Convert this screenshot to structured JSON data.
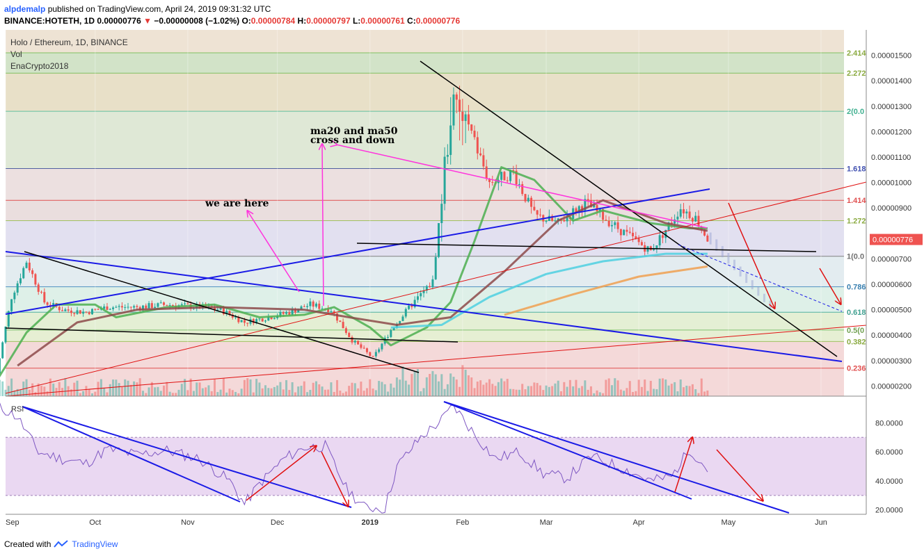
{
  "header": {
    "author": "alpdemalp",
    "published": "published on TradingView.com, April 24, 2019 09:31:32 UTC",
    "symbol": "BINANCE:HOTETH, 1D",
    "last": "0.00000776",
    "change": "−0.00000008 (−1.02%)",
    "o_label": "O:",
    "o": "0.00000784",
    "h_label": "H:",
    "h": "0.00000797",
    "l_label": "L:",
    "l": "0.00000761",
    "c_label": "C:",
    "c": "0.00000776"
  },
  "legend": {
    "title": "Holo / Ethereum, 1D, BINANCE",
    "vol": "Vol",
    "indicator": "EnaCrypto2018"
  },
  "footer": {
    "created": "Created with",
    "brand": "TradingView"
  },
  "colors": {
    "bull": "#26a69a",
    "bear": "#ef5350",
    "ma20": "#4caf50",
    "ma50": "#8d4a4a",
    "ma100": "#4dd0e1",
    "ma200": "#f0a050",
    "trend_blue": "#1a1ae6",
    "trend_black": "#000000",
    "annot_magenta": "#ff33dd",
    "annot_red": "#e01010",
    "rsi": "#7e57c2"
  },
  "chart_data": [
    {
      "type": "candlestick",
      "title": "Holo / Ethereum, 1D, BINANCE",
      "x_ticks": [
        "Sep",
        "Oct",
        "Nov",
        "Dec",
        "2019",
        "Feb",
        "Mar",
        "Apr",
        "May",
        "Jun"
      ],
      "x_tick_dates": [
        "2018-09-01",
        "2018-10-01",
        "2018-11-01",
        "2018-12-01",
        "2019-01-01",
        "2019-02-01",
        "2019-03-01",
        "2019-04-01",
        "2019-05-01",
        "2019-06-01"
      ],
      "y_ticks": [
        "0.00001500",
        "0.00001400",
        "0.00001300",
        "0.00001200",
        "0.00001100",
        "0.00001000",
        "0.00000900",
        "0.00000800",
        "0.00000700",
        "0.00000600",
        "0.00000500",
        "0.00000400",
        "0.00000300",
        "0.00000200"
      ],
      "ylim": [
        1.6e-06,
        1.6e-05
      ],
      "last_price": "0.00000776",
      "fib_levels": [
        {
          "label": "0.236",
          "value": 2.7e-06
        },
        {
          "label": "0.382",
          "value": 3.75e-06
        },
        {
          "label": "0.5(0",
          "value": 4.2e-06
        },
        {
          "label": "0.618",
          "value": 4.9e-06
        },
        {
          "label": "0.786",
          "value": 5.9e-06
        },
        {
          "label": "1(0.0",
          "value": 7.1e-06
        },
        {
          "label": "1.272",
          "value": 8.5e-06
        },
        {
          "label": "1.414",
          "value": 9.3e-06
        },
        {
          "label": "1.618",
          "value": 1.055e-05
        },
        {
          "label": "2(0.0",
          "value": 1.28e-05
        },
        {
          "label": "2.272",
          "value": 1.43e-05
        },
        {
          "label": "2.414",
          "value": 1.51e-05
        }
      ],
      "series": [
        {
          "name": "price",
          "points": [
            [
              "2018-08-29",
              2.5e-06
            ],
            [
              "2018-09-03",
              5.5e-06
            ],
            [
              "2018-09-08",
              6.9e-06
            ],
            [
              "2018-09-14",
              5.3e-06
            ],
            [
              "2018-09-20",
              5e-06
            ],
            [
              "2018-09-28",
              4.9e-06
            ],
            [
              "2018-10-05",
              5.1e-06
            ],
            [
              "2018-10-15",
              5.1e-06
            ],
            [
              "2018-10-25",
              5.2e-06
            ],
            [
              "2018-11-05",
              5.1e-06
            ],
            [
              "2018-11-12",
              5e-06
            ],
            [
              "2018-11-20",
              4.5e-06
            ],
            [
              "2018-11-28",
              4.7e-06
            ],
            [
              "2018-12-05",
              4.9e-06
            ],
            [
              "2018-12-12",
              5.2e-06
            ],
            [
              "2018-12-19",
              5e-06
            ],
            [
              "2018-12-26",
              3.8e-06
            ],
            [
              "2019-01-02",
              3.1e-06
            ],
            [
              "2019-01-08",
              4.2e-06
            ],
            [
              "2019-01-15",
              5.2e-06
            ],
            [
              "2019-01-22",
              6.1e-06
            ],
            [
              "2019-01-28",
              1.28e-05
            ],
            [
              "2019-02-03",
              1.22e-05
            ],
            [
              "2019-02-10",
              1e-05
            ],
            [
              "2019-02-18",
              1.04e-05
            ],
            [
              "2019-02-25",
              8.7e-06
            ],
            [
              "2019-03-05",
              8.4e-06
            ],
            [
              "2019-03-14",
              9.2e-06
            ],
            [
              "2019-03-25",
              8.2e-06
            ],
            [
              "2019-04-05",
              7.3e-06
            ],
            [
              "2019-04-15",
              9e-06
            ],
            [
              "2019-04-20",
              8.6e-06
            ],
            [
              "2019-04-24",
              7.8e-06
            ]
          ]
        },
        {
          "name": "ma20",
          "points": [
            [
              "2018-08-29",
              2.2e-06
            ],
            [
              "2018-09-08",
              4.1e-06
            ],
            [
              "2018-09-18",
              5.2e-06
            ],
            [
              "2018-10-01",
              5.2e-06
            ],
            [
              "2018-10-08",
              4.7e-06
            ],
            [
              "2018-10-25",
              5.1e-06
            ],
            [
              "2018-11-10",
              5.2e-06
            ],
            [
              "2018-11-25",
              4.7e-06
            ],
            [
              "2018-12-10",
              4.8e-06
            ],
            [
              "2018-12-20",
              5.1e-06
            ],
            [
              "2019-01-01",
              4.3e-06
            ],
            [
              "2019-01-08",
              3.6e-06
            ],
            [
              "2019-01-20",
              4.3e-06
            ],
            [
              "2019-01-28",
              5.3e-06
            ],
            [
              "2019-02-05",
              7.7e-06
            ],
            [
              "2019-02-14",
              1.06e-05
            ],
            [
              "2019-02-25",
              1.01e-05
            ],
            [
              "2019-03-10",
              8.5e-06
            ],
            [
              "2019-03-20",
              8.9e-06
            ],
            [
              "2019-04-05",
              8.4e-06
            ],
            [
              "2019-04-18",
              8.2e-06
            ],
            [
              "2019-04-24",
              8.2e-06
            ]
          ]
        },
        {
          "name": "ma50",
          "points": [
            [
              "2018-09-05",
              2.8e-06
            ],
            [
              "2018-09-25",
              4.5e-06
            ],
            [
              "2018-10-15",
              5e-06
            ],
            [
              "2018-11-10",
              5.1e-06
            ],
            [
              "2018-12-10",
              5e-06
            ],
            [
              "2018-12-25",
              4.7e-06
            ],
            [
              "2019-01-10",
              4.4e-06
            ],
            [
              "2019-01-28",
              4.7e-06
            ],
            [
              "2019-02-15",
              6.5e-06
            ],
            [
              "2019-03-05",
              8.5e-06
            ],
            [
              "2019-03-20",
              9.3e-06
            ],
            [
              "2019-04-10",
              8.4e-06
            ],
            [
              "2019-04-24",
              8.1e-06
            ]
          ]
        },
        {
          "name": "ma100",
          "points": [
            [
              "2019-01-08",
              4.3e-06
            ],
            [
              "2019-01-25",
              4.4e-06
            ],
            [
              "2019-02-10",
              5.5e-06
            ],
            [
              "2019-03-01",
              6.4e-06
            ],
            [
              "2019-03-20",
              6.9e-06
            ],
            [
              "2019-04-10",
              7.2e-06
            ],
            [
              "2019-04-24",
              7.2e-06
            ]
          ]
        },
        {
          "name": "ma200",
          "points": [
            [
              "2019-02-15",
              4.8e-06
            ],
            [
              "2019-03-10",
              5.6e-06
            ],
            [
              "2019-04-01",
              6.3e-06
            ],
            [
              "2019-04-24",
              6.7e-06
            ]
          ]
        }
      ],
      "annotations": [
        {
          "text": "we are here"
        },
        {
          "text": "ma20 and ma50"
        },
        {
          "text": "cross and down"
        }
      ]
    },
    {
      "type": "line",
      "title": "RSI",
      "y_ticks": [
        "80.0000",
        "60.0000",
        "40.0000",
        "20.0000"
      ],
      "ylim": [
        17,
        96
      ],
      "band": [
        30,
        70
      ],
      "series": [
        {
          "name": "RSI",
          "points": [
            [
              "2018-08-29",
              92
            ],
            [
              "2018-09-05",
              84
            ],
            [
              "2018-09-12",
              60
            ],
            [
              "2018-09-20",
              55
            ],
            [
              "2018-09-28",
              52
            ],
            [
              "2018-10-05",
              62
            ],
            [
              "2018-10-15",
              58
            ],
            [
              "2018-10-25",
              61
            ],
            [
              "2018-11-05",
              55
            ],
            [
              "2018-11-15",
              40
            ],
            [
              "2018-11-20",
              24
            ],
            [
              "2018-11-25",
              38
            ],
            [
              "2018-12-03",
              55
            ],
            [
              "2018-12-10",
              63
            ],
            [
              "2018-12-17",
              64
            ],
            [
              "2018-12-24",
              35
            ],
            [
              "2018-12-30",
              22
            ],
            [
              "2019-01-06",
              21
            ],
            [
              "2019-01-10",
              50
            ],
            [
              "2019-01-18",
              70
            ],
            [
              "2019-01-25",
              82
            ],
            [
              "2019-01-29",
              92
            ],
            [
              "2019-02-05",
              72
            ],
            [
              "2019-02-12",
              55
            ],
            [
              "2019-02-20",
              60
            ],
            [
              "2019-02-28",
              45
            ],
            [
              "2019-03-08",
              42
            ],
            [
              "2019-03-16",
              57
            ],
            [
              "2019-03-25",
              50
            ],
            [
              "2019-04-05",
              40
            ],
            [
              "2019-04-12",
              43
            ],
            [
              "2019-04-18",
              62
            ],
            [
              "2019-04-24",
              48
            ]
          ]
        }
      ]
    }
  ]
}
